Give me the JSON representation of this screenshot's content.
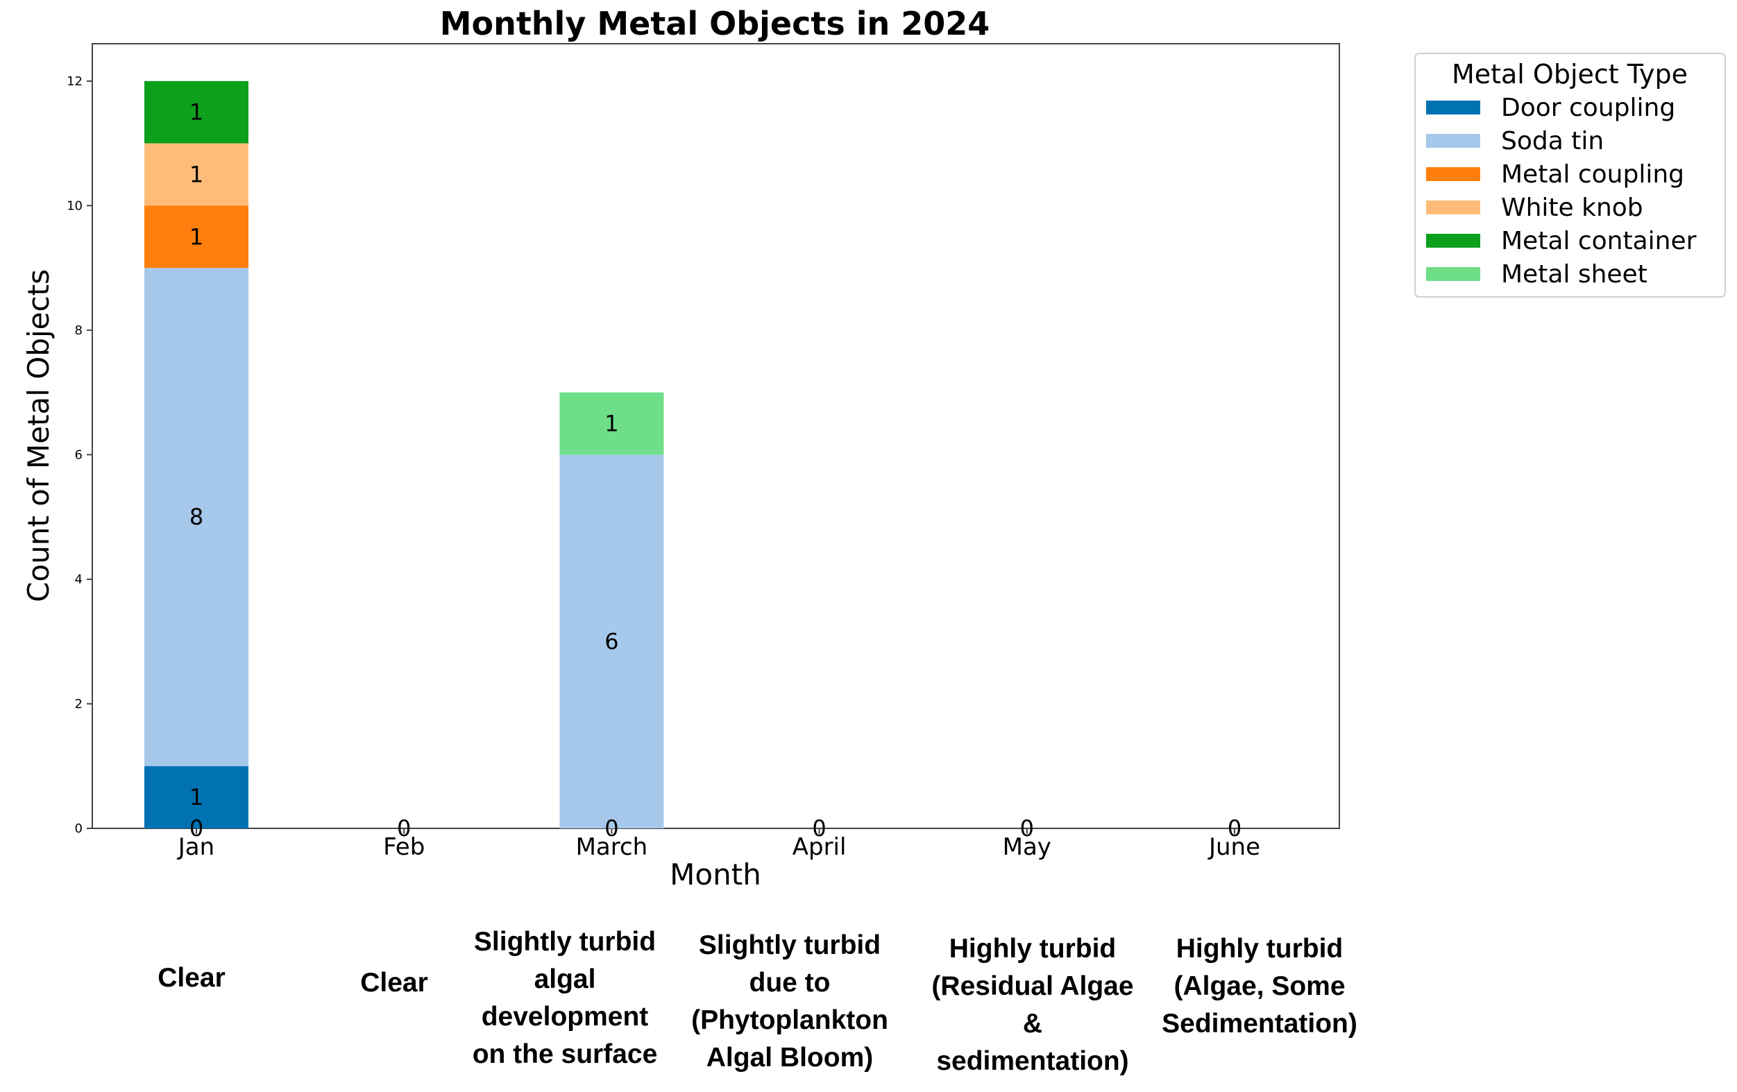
{
  "chart_data": {
    "type": "bar",
    "stacked": true,
    "title": "Monthly Metal Objects in 2024",
    "xlabel": "Month",
    "ylabel": "Count of Metal Objects",
    "ylim": [
      0,
      12.6
    ],
    "yticks": [
      0,
      2,
      4,
      6,
      8,
      10,
      12
    ],
    "grid": false,
    "legend_title": "Metal Object Type",
    "legend_position": "outside-top-right",
    "categories": [
      "Jan",
      "Feb",
      "March",
      "April",
      "May",
      "June"
    ],
    "series": [
      {
        "name": "Door coupling",
        "color": "#0072b2",
        "values": [
          1,
          0,
          0,
          0,
          0,
          0
        ]
      },
      {
        "name": "Soda tin",
        "color": "#a6c8ea",
        "values": [
          8,
          0,
          6,
          0,
          0,
          0
        ]
      },
      {
        "name": "Metal coupling",
        "color": "#ff7f0e",
        "values": [
          1,
          0,
          0,
          0,
          0,
          0
        ]
      },
      {
        "name": "White knob",
        "color": "#ffbb78",
        "values": [
          1,
          0,
          0,
          0,
          0,
          0
        ]
      },
      {
        "name": "Metal container",
        "color": "#0da01c",
        "values": [
          1,
          0,
          0,
          0,
          0,
          0
        ]
      },
      {
        "name": "Metal sheet",
        "color": "#6fde88",
        "values": [
          0,
          0,
          1,
          0,
          0,
          0
        ]
      }
    ],
    "baseline_labels": [
      "0",
      "0",
      "0",
      "0",
      "0",
      "0"
    ],
    "conditions": [
      [
        "Clear"
      ],
      [
        "Clear"
      ],
      [
        "Slightly turbid",
        "algal",
        "development",
        "on the surface"
      ],
      [
        "Slightly turbid",
        "due to",
        "(Phytoplankton",
        "Algal Bloom)"
      ],
      [
        "Highly turbid",
        "(Residual Algae",
        "&",
        "sedimentation)"
      ],
      [
        "Highly turbid",
        "(Algae, Some",
        "Sedimentation)"
      ]
    ]
  }
}
